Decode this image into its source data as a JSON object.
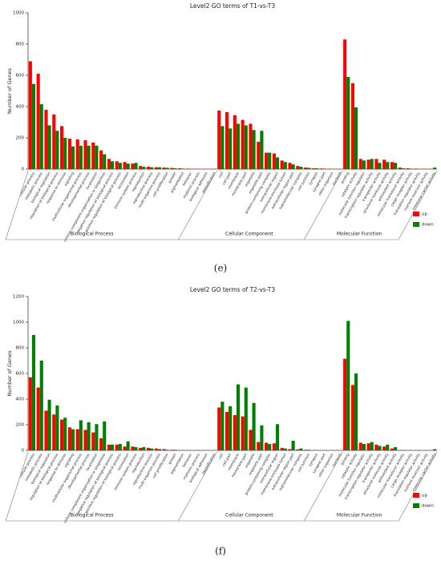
{
  "chart_data": [
    {
      "type": "bar",
      "title": "Level2 GO terms of T1-vs-T3",
      "ylabel": "Number of Genes",
      "caption": "(e)",
      "ylim": [
        0,
        1000
      ],
      "yticks": [
        0,
        200,
        400,
        600,
        800,
        1000
      ],
      "legend": "lower right",
      "category_groups": [
        {
          "name": "Biological Process",
          "categories": [
            "cellular process",
            "metabolic process",
            "biological regulation",
            "regulation of biological process",
            "response to stimulus",
            "signaling",
            "multicellular organismal process",
            "developmental process",
            "localization",
            "cellular component organization or biogenesis",
            "negative regulation of biological process",
            "positive regulation of biological process",
            "locomotion",
            "immune system process",
            "reproduction",
            "reproductive process",
            "multi-organism process",
            "cell proliferation",
            "growth",
            "pigmentation",
            "behavior",
            "rhythmic process",
            "biological adhesion",
            "detoxification"
          ]
        },
        {
          "name": "Cellular Component",
          "categories": [
            "cell",
            "cell part",
            "membrane",
            "membrane part",
            "organelle",
            "organelle part",
            "protein-containing complex",
            "extracellular region",
            "membrane-enclosed lumen",
            "extracellular region part",
            "supramolecular complex",
            "cell junction",
            "synapse",
            "synapse part",
            "other organism",
            "nucleoid"
          ]
        },
        {
          "name": "Molecular Function",
          "categories": [
            "binding",
            "catalytic activity",
            "molecular function regulator",
            "transcription regulator activity",
            "transporter activity",
            "structural molecule activity",
            "antioxidant activity",
            "molecular transducer activity",
            "cargo receptor activity",
            "translation regulator activity",
            "nutrient reservoir activity",
            "molecular carrier activity"
          ]
        }
      ],
      "series": [
        {
          "name": "up",
          "color": "#ff0000",
          "values": [
            690,
            610,
            380,
            350,
            275,
            195,
            190,
            185,
            170,
            120,
            65,
            50,
            45,
            35,
            20,
            15,
            12,
            10,
            8,
            5,
            3,
            2,
            2,
            1,
            375,
            365,
            345,
            315,
            290,
            175,
            105,
            100,
            55,
            40,
            20,
            10,
            5,
            4,
            2,
            1,
            830,
            550,
            65,
            60,
            65,
            60,
            45,
            10,
            5,
            3,
            2,
            1
          ]
        },
        {
          "name": "down",
          "color": "#008000",
          "values": [
            545,
            415,
            280,
            245,
            200,
            145,
            150,
            150,
            150,
            95,
            50,
            40,
            35,
            40,
            15,
            12,
            12,
            8,
            5,
            3,
            2,
            1,
            1,
            1,
            275,
            260,
            290,
            280,
            250,
            245,
            105,
            75,
            45,
            30,
            15,
            8,
            5,
            3,
            1,
            1,
            590,
            395,
            55,
            65,
            40,
            45,
            40,
            5,
            3,
            2,
            1,
            10
          ]
        }
      ]
    },
    {
      "type": "bar",
      "title": "Level2 GO terms of T2-vs-T3",
      "ylabel": "Number of Genes",
      "caption": "(f)",
      "ylim": [
        0,
        1200
      ],
      "yticks": [
        0,
        200,
        400,
        600,
        800,
        1000,
        1200
      ],
      "legend": "lower right",
      "category_groups": [
        {
          "name": "Biological Process",
          "categories": [
            "cellular process",
            "metabolic process",
            "biological regulation",
            "regulation of biological process",
            "response to stimulus",
            "signaling",
            "multicellular organismal process",
            "developmental process",
            "localization",
            "cellular component organization or biogenesis",
            "negative regulation of biological process",
            "positive regulation of biological process",
            "locomotion",
            "immune system process",
            "reproduction",
            "reproductive process",
            "multi-organism process",
            "cell proliferation",
            "growth",
            "pigmentation",
            "behavior",
            "rhythmic process",
            "biological adhesion",
            "detoxification"
          ]
        },
        {
          "name": "Cellular Component",
          "categories": [
            "cell",
            "cell part",
            "membrane",
            "membrane part",
            "organelle",
            "organelle part",
            "protein-containing complex",
            "extracellular region",
            "membrane-enclosed lumen",
            "extracellular region part",
            "supramolecular complex",
            "cell junction",
            "synapse",
            "synapse part",
            "other organism",
            "nucleoid"
          ]
        },
        {
          "name": "Molecular Function",
          "categories": [
            "binding",
            "catalytic activity",
            "molecular function regulator",
            "transcription regulator activity",
            "transporter activity",
            "structural molecule activity",
            "antioxidant activity",
            "molecular transducer activity",
            "cargo receptor activity",
            "translation regulator activity",
            "nutrient reservoir activity",
            "molecular carrier activity"
          ]
        }
      ],
      "series": [
        {
          "name": "up",
          "color": "#ff0000",
          "values": [
            570,
            490,
            310,
            280,
            240,
            180,
            165,
            160,
            140,
            95,
            45,
            45,
            30,
            30,
            20,
            20,
            15,
            10,
            5,
            3,
            2,
            2,
            1,
            1,
            335,
            300,
            275,
            265,
            160,
            65,
            60,
            55,
            20,
            10,
            8,
            5,
            3,
            2,
            1,
            1,
            715,
            510,
            60,
            55,
            45,
            30,
            15,
            3,
            2,
            2,
            1,
            1
          ]
        },
        {
          "name": "down",
          "color": "#008000",
          "values": [
            900,
            700,
            395,
            350,
            255,
            165,
            235,
            220,
            205,
            225,
            45,
            50,
            70,
            25,
            25,
            15,
            10,
            5,
            5,
            3,
            2,
            2,
            1,
            1,
            380,
            345,
            515,
            490,
            370,
            195,
            50,
            205,
            15,
            75,
            15,
            5,
            3,
            2,
            1,
            1,
            1010,
            600,
            50,
            65,
            35,
            45,
            25,
            3,
            2,
            2,
            1,
            10
          ]
        }
      ]
    }
  ]
}
